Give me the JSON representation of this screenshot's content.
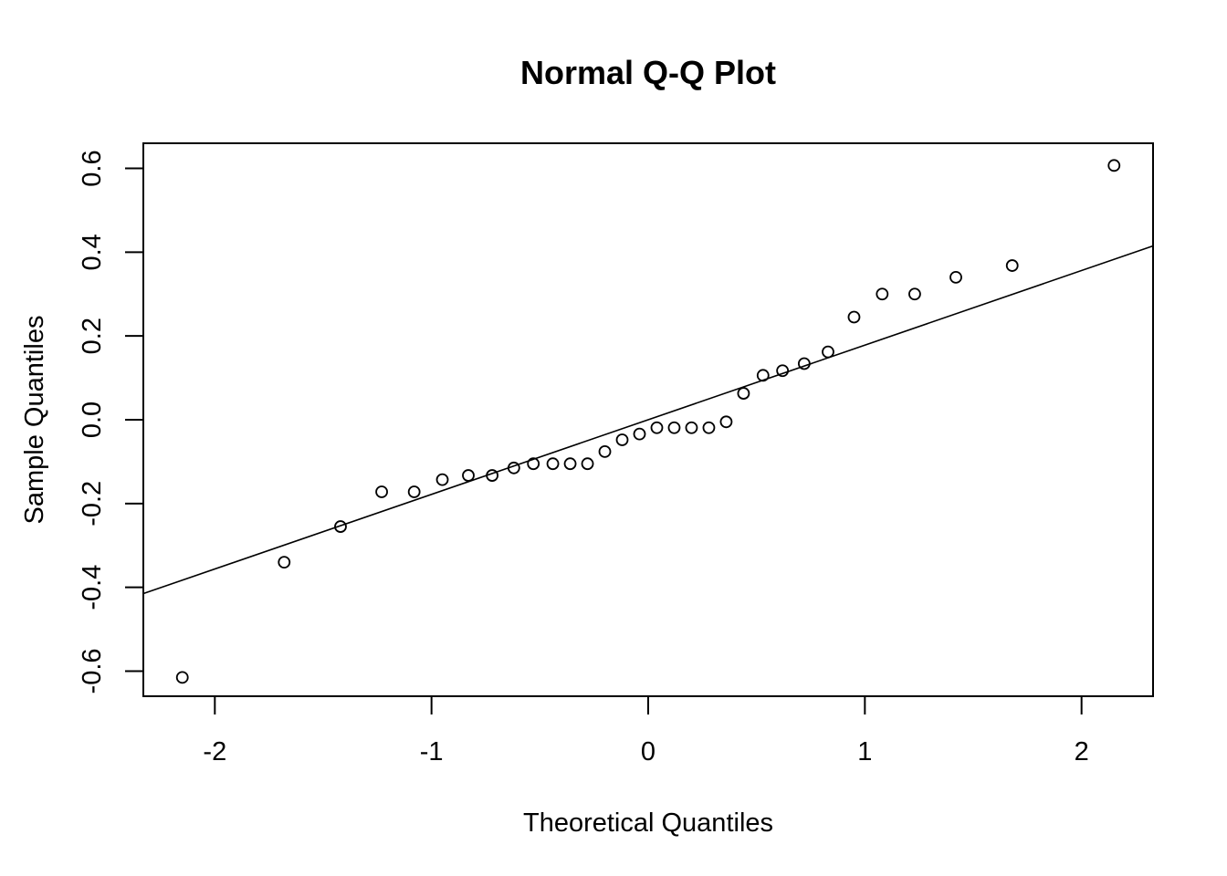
{
  "chart_data": {
    "type": "scatter",
    "title": "Normal Q-Q Plot",
    "xlabel": "Theoretical Quantiles",
    "ylabel": "Sample Quantiles",
    "xlim": [
      -2.33,
      2.33
    ],
    "ylim": [
      -0.66,
      0.66
    ],
    "x_ticks": [
      -2,
      -1,
      0,
      1,
      2
    ],
    "x_tick_labels": [
      "-2",
      "-1",
      "0",
      "1",
      "2"
    ],
    "y_ticks": [
      -0.6,
      -0.4,
      -0.2,
      0.0,
      0.2,
      0.4,
      0.6
    ],
    "y_tick_labels": [
      "-0.6",
      "-0.4",
      "-0.2",
      "0.0",
      "0.2",
      "0.4",
      "0.6"
    ],
    "grid": false,
    "legend": "none",
    "marker": "open-circle",
    "points": [
      {
        "x": -2.15,
        "y": -0.615
      },
      {
        "x": -1.68,
        "y": -0.34
      },
      {
        "x": -1.42,
        "y": -0.255
      },
      {
        "x": -1.23,
        "y": -0.172
      },
      {
        "x": -1.08,
        "y": -0.172
      },
      {
        "x": -0.95,
        "y": -0.143
      },
      {
        "x": -0.83,
        "y": -0.133
      },
      {
        "x": -0.72,
        "y": -0.133
      },
      {
        "x": -0.62,
        "y": -0.115
      },
      {
        "x": -0.53,
        "y": -0.105
      },
      {
        "x": -0.44,
        "y": -0.105
      },
      {
        "x": -0.36,
        "y": -0.105
      },
      {
        "x": -0.28,
        "y": -0.105
      },
      {
        "x": -0.2,
        "y": -0.076
      },
      {
        "x": -0.12,
        "y": -0.048
      },
      {
        "x": -0.04,
        "y": -0.034
      },
      {
        "x": 0.04,
        "y": -0.019
      },
      {
        "x": 0.12,
        "y": -0.019
      },
      {
        "x": 0.2,
        "y": -0.019
      },
      {
        "x": 0.28,
        "y": -0.019
      },
      {
        "x": 0.36,
        "y": -0.005
      },
      {
        "x": 0.44,
        "y": 0.063
      },
      {
        "x": 0.53,
        "y": 0.106
      },
      {
        "x": 0.62,
        "y": 0.117
      },
      {
        "x": 0.72,
        "y": 0.134
      },
      {
        "x": 0.83,
        "y": 0.162
      },
      {
        "x": 0.95,
        "y": 0.245
      },
      {
        "x": 1.08,
        "y": 0.3
      },
      {
        "x": 1.23,
        "y": 0.3
      },
      {
        "x": 1.42,
        "y": 0.34
      },
      {
        "x": 1.68,
        "y": 0.368
      },
      {
        "x": 2.15,
        "y": 0.607
      }
    ],
    "reference_line": {
      "x0": -2.33,
      "y0": -0.415,
      "x1": 2.33,
      "y1": 0.415
    }
  }
}
